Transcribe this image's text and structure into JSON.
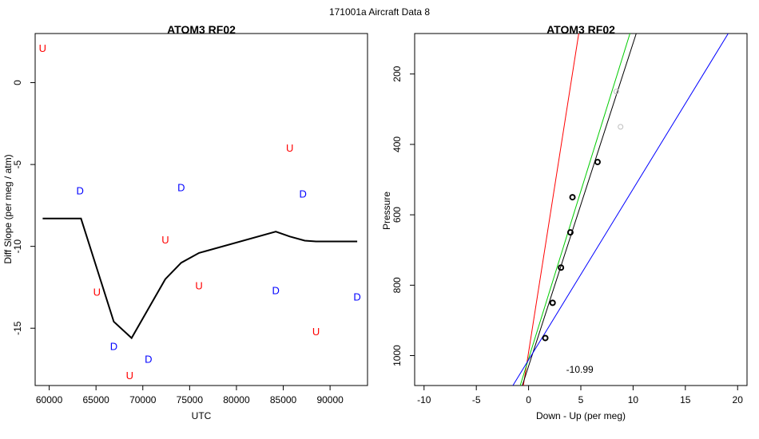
{
  "figure": {
    "title": "171001a   Aircraft Data 8"
  },
  "chart_data": [
    {
      "type": "scatter",
      "title": "ATOM3 RF02",
      "xlabel": "UTC",
      "ylabel": "Diff Slope (per meg / atm)",
      "xlim": [
        58500,
        94000
      ],
      "ylim": [
        -18.5,
        3.0
      ],
      "xticks": [
        60000,
        65000,
        70000,
        75000,
        80000,
        85000,
        90000
      ],
      "xtick_labels": [
        "60000",
        "65000",
        "70000",
        "75000",
        "80000",
        "85000",
        "90000"
      ],
      "yticks": [
        -15,
        -10,
        -5,
        0
      ],
      "ytick_labels": [
        "-15",
        "-10",
        "-5",
        "0"
      ],
      "grid": false,
      "letter_points": [
        {
          "label": "U",
          "x": 59300,
          "y": 2.1,
          "color": "#ff0000"
        },
        {
          "label": "D",
          "x": 63300,
          "y": -6.6,
          "color": "#0000ff"
        },
        {
          "label": "U",
          "x": 65100,
          "y": -12.8,
          "color": "#ff0000"
        },
        {
          "label": "D",
          "x": 66900,
          "y": -16.1,
          "color": "#0000ff"
        },
        {
          "label": "U",
          "x": 68600,
          "y": -17.9,
          "color": "#ff0000"
        },
        {
          "label": "D",
          "x": 70600,
          "y": -16.9,
          "color": "#0000ff"
        },
        {
          "label": "U",
          "x": 72400,
          "y": -9.6,
          "color": "#ff0000"
        },
        {
          "label": "D",
          "x": 74100,
          "y": -6.4,
          "color": "#0000ff"
        },
        {
          "label": "U",
          "x": 76000,
          "y": -12.4,
          "color": "#ff0000"
        },
        {
          "label": "D",
          "x": 84200,
          "y": -12.7,
          "color": "#0000ff"
        },
        {
          "label": "U",
          "x": 85700,
          "y": -4.0,
          "color": "#ff0000"
        },
        {
          "label": "D",
          "x": 87100,
          "y": -6.8,
          "color": "#0000ff"
        },
        {
          "label": "U",
          "x": 88500,
          "y": -15.2,
          "color": "#ff0000"
        },
        {
          "label": "D",
          "x": 92900,
          "y": -13.1,
          "color": "#0000ff"
        }
      ],
      "line": {
        "color": "#000000",
        "x": [
          59300,
          63400,
          66900,
          68800,
          70600,
          72400,
          74100,
          76000,
          84200,
          85700,
          87300,
          88500,
          92900
        ],
        "y": [
          -8.3,
          -8.3,
          -14.6,
          -15.6,
          -13.8,
          -12.0,
          -11.0,
          -10.4,
          -9.1,
          -9.4,
          -9.65,
          -9.7,
          -9.7
        ]
      }
    },
    {
      "type": "scatter",
      "title": "ATOM3 RF02",
      "xlabel": "Down - Up (per meg)",
      "ylabel": "Pressure",
      "xlim": [
        -10.9,
        20.9
      ],
      "ylim": [
        1085,
        85
      ],
      "y_reversed": true,
      "xticks": [
        -10,
        -5,
        0,
        5,
        10,
        15,
        20
      ],
      "xtick_labels": [
        "-10",
        "-5",
        "0",
        "5",
        "10",
        "15",
        "20"
      ],
      "yticks": [
        200,
        400,
        600,
        800,
        1000
      ],
      "ytick_labels": [
        "200",
        "400",
        "600",
        "800",
        "1000"
      ],
      "grid": false,
      "points": [
        {
          "x": 1.6,
          "y": 950,
          "color": "#000000"
        },
        {
          "x": 2.3,
          "y": 850,
          "color": "#000000"
        },
        {
          "x": 3.1,
          "y": 750,
          "color": "#000000"
        },
        {
          "x": 4.0,
          "y": 650,
          "color": "#000000"
        },
        {
          "x": 4.2,
          "y": 550,
          "color": "#000000"
        },
        {
          "x": 6.6,
          "y": 450,
          "color": "#000000"
        },
        {
          "x": 8.8,
          "y": 350,
          "color": "#bdbdbd"
        },
        {
          "x": 8.4,
          "y": 250,
          "color": "#bdbdbd"
        }
      ],
      "lines": [
        {
          "color": "#ff0000",
          "x1": -0.5,
          "y1": 1085,
          "x2": 4.8,
          "y2": 85
        },
        {
          "color": "#00cc00",
          "x1": -0.8,
          "y1": 1085,
          "x2": 9.7,
          "y2": 85
        },
        {
          "color": "#000000",
          "x1": -0.6,
          "y1": 1085,
          "x2": 10.3,
          "y2": 85
        },
        {
          "color": "#0000ff",
          "x1": -1.5,
          "y1": 1085,
          "x2": 19.1,
          "y2": 85
        }
      ],
      "annotation": {
        "text": "-10.99",
        "x": 4.9,
        "y": 1040
      }
    }
  ]
}
